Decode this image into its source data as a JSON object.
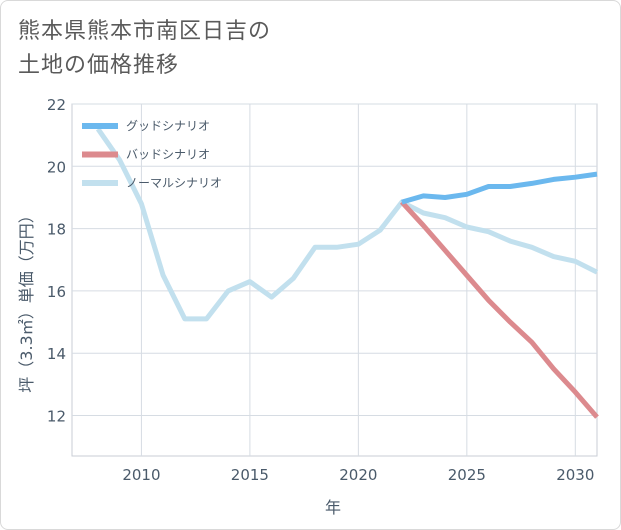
{
  "title": {
    "line1": "熊本県熊本市南区日吉の",
    "line2": "土地の価格推移"
  },
  "chart_data": {
    "type": "line",
    "xlabel": "年",
    "ylabel": "坪（3.3㎡）単価（万円）",
    "xlim": [
      2006.8,
      2031
    ],
    "ylim": [
      10.7,
      22
    ],
    "xticks": [
      2010,
      2015,
      2020,
      2025,
      2030
    ],
    "yticks": [
      12,
      14,
      16,
      18,
      20,
      22
    ],
    "grid": true,
    "legend_position": "top-left",
    "series": [
      {
        "name": "グッドシナリオ",
        "color": "#6bb8ee",
        "x": [
          2022,
          2023,
          2024,
          2025,
          2026,
          2027,
          2028,
          2029,
          2030,
          2031
        ],
        "y": [
          18.85,
          19.05,
          19.0,
          19.1,
          19.35,
          19.35,
          19.45,
          19.58,
          19.65,
          19.75
        ]
      },
      {
        "name": "バッドシナリオ",
        "color": "#dc8a8e",
        "x": [
          2022,
          2023,
          2024,
          2025,
          2026,
          2027,
          2028,
          2029,
          2030,
          2031
        ],
        "y": [
          18.85,
          18.1,
          17.3,
          16.5,
          15.7,
          15.0,
          14.35,
          13.5,
          12.75,
          11.95
        ]
      },
      {
        "name": "ノーマルシナリオ",
        "color": "#c2e0ee",
        "x": [
          2008,
          2009,
          2010,
          2011,
          2012,
          2013,
          2014,
          2015,
          2016,
          2017,
          2018,
          2019,
          2020,
          2021,
          2022,
          2023,
          2024,
          2025,
          2026,
          2027,
          2028,
          2029,
          2030,
          2031
        ],
        "y": [
          21.2,
          20.2,
          18.8,
          16.5,
          15.1,
          15.1,
          16.0,
          16.3,
          15.8,
          16.4,
          17.4,
          17.4,
          17.5,
          17.95,
          18.85,
          18.5,
          18.35,
          18.05,
          17.9,
          17.6,
          17.4,
          17.1,
          16.95,
          16.6
        ]
      }
    ]
  }
}
